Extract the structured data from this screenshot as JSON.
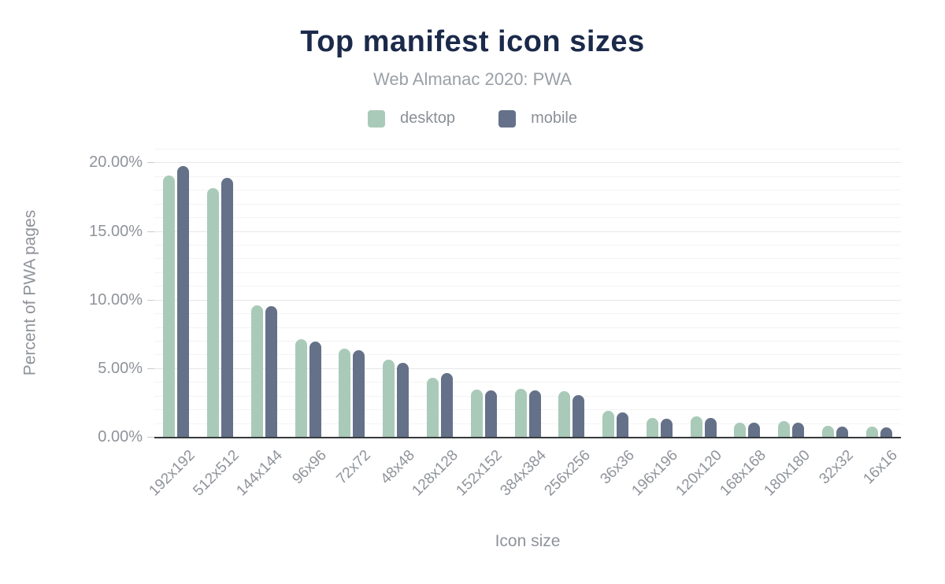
{
  "chart_data": {
    "type": "bar",
    "title": "Top manifest icon sizes",
    "subtitle": "Web Almanac 2020: PWA",
    "xlabel": "Icon size",
    "ylabel": "Percent of PWA pages",
    "legend_position": "top",
    "grid": "horizontal, minor every 1%, major every 5%",
    "ylim": [
      0,
      21
    ],
    "ytick_values": [
      0,
      5,
      10,
      15,
      20
    ],
    "ytick_labels": [
      "0.00%",
      "5.00%",
      "10.00%",
      "15.00%",
      "20.00%"
    ],
    "categories": [
      "192x192",
      "512x512",
      "144x144",
      "96x96",
      "72x72",
      "48x48",
      "128x128",
      "152x152",
      "384x384",
      "256x256",
      "36x36",
      "196x196",
      "120x120",
      "168x168",
      "180x180",
      "32x32",
      "16x16"
    ],
    "series": [
      {
        "name": "desktop",
        "color": "#a9cab8",
        "values": [
          19.05,
          18.15,
          9.6,
          7.1,
          6.4,
          5.6,
          4.3,
          3.45,
          3.5,
          3.3,
          1.87,
          1.35,
          1.47,
          1.06,
          1.15,
          0.81,
          0.77
        ]
      },
      {
        "name": "mobile",
        "color": "#647189",
        "values": [
          19.75,
          18.85,
          9.5,
          6.97,
          6.3,
          5.41,
          4.65,
          3.4,
          3.38,
          3.06,
          1.76,
          1.33,
          1.38,
          1.04,
          1.06,
          0.76,
          0.66
        ]
      }
    ],
    "theme": {
      "background": "#ffffff",
      "title_color": "#1b2a4a",
      "muted_text_color": "#8f9399",
      "subtitle_color": "#9aa0a6",
      "axis_line_color": "#37393c",
      "major_gridline_color": "#e7e7e7",
      "minor_gridline_color": "#f3f3f3"
    }
  }
}
